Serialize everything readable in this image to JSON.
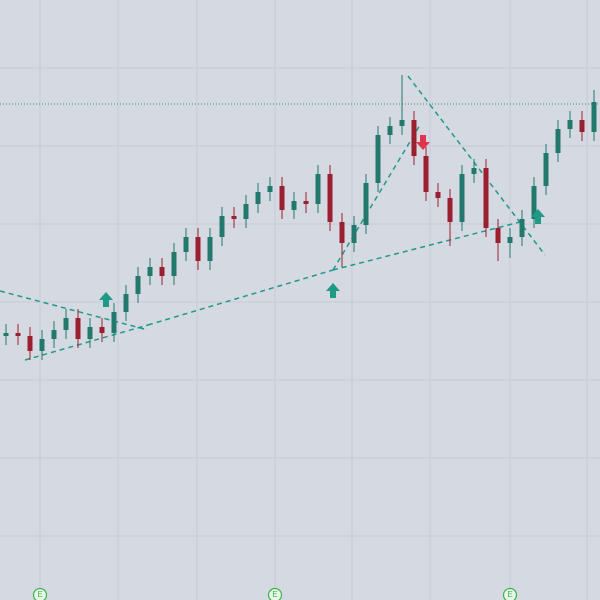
{
  "chart_data": {
    "type": "candlestick",
    "open": [
      44,
      44.5,
      44,
      41.5,
      43.5,
      45,
      47,
      43.5,
      45.5,
      44.5,
      48,
      51,
      54,
      55.5,
      54,
      58,
      60.5,
      56.5,
      60.5,
      64,
      63.5,
      66,
      68,
      69,
      65,
      66.5,
      66,
      71,
      63,
      59.5,
      62.5,
      69.5,
      77.5,
      79,
      80,
      74,
      68,
      67,
      63,
      71,
      72,
      62,
      59.5,
      60.5,
      63.5,
      69,
      74.5,
      78.5,
      80,
      78
    ],
    "high": [
      46,
      46,
      45.5,
      45,
      46.5,
      48.5,
      48.5,
      47,
      47,
      49.5,
      52.5,
      55.5,
      57,
      57,
      59.5,
      62,
      62,
      62,
      65.5,
      65.5,
      67.5,
      69.5,
      70.5,
      70.5,
      68,
      68,
      72.5,
      72.5,
      64.5,
      64,
      71,
      79,
      80.5,
      87.5,
      81.5,
      75.5,
      69.5,
      68.5,
      72.5,
      73.5,
      73.5,
      63.5,
      62,
      65,
      70.5,
      76,
      80,
      81.5,
      81.5,
      85
    ],
    "low": [
      42.5,
      42.5,
      40,
      40,
      42,
      43.5,
      42,
      42,
      43,
      43,
      46.5,
      49.5,
      52.5,
      52.5,
      52.5,
      56.5,
      55,
      55,
      59,
      62,
      62,
      64.5,
      66.5,
      63.5,
      63.5,
      64.5,
      64.5,
      61.5,
      55.5,
      58,
      61,
      68,
      76,
      77.5,
      72.5,
      66.5,
      65.5,
      59,
      61.5,
      69.5,
      60.5,
      56.5,
      57,
      59,
      62,
      67.5,
      73,
      77,
      76.5,
      76.5
    ],
    "close": [
      44.5,
      44,
      41.5,
      43.5,
      45,
      47,
      43.5,
      45.5,
      44.5,
      48,
      51,
      54,
      55.5,
      54,
      58,
      60.5,
      56.5,
      60.5,
      64,
      63.5,
      66,
      68,
      69,
      65,
      66.5,
      66,
      71,
      63,
      59.5,
      62.5,
      69.5,
      77.5,
      79,
      80,
      74,
      68,
      67,
      63,
      71,
      72,
      62,
      59.5,
      60.5,
      63.5,
      69,
      74.5,
      78.5,
      80,
      78,
      83
    ],
    "ylim": [
      0,
      100
    ],
    "up_color": "#22786c",
    "down_color": "#9a2030",
    "markers": [
      "E",
      "E",
      "E"
    ]
  }
}
